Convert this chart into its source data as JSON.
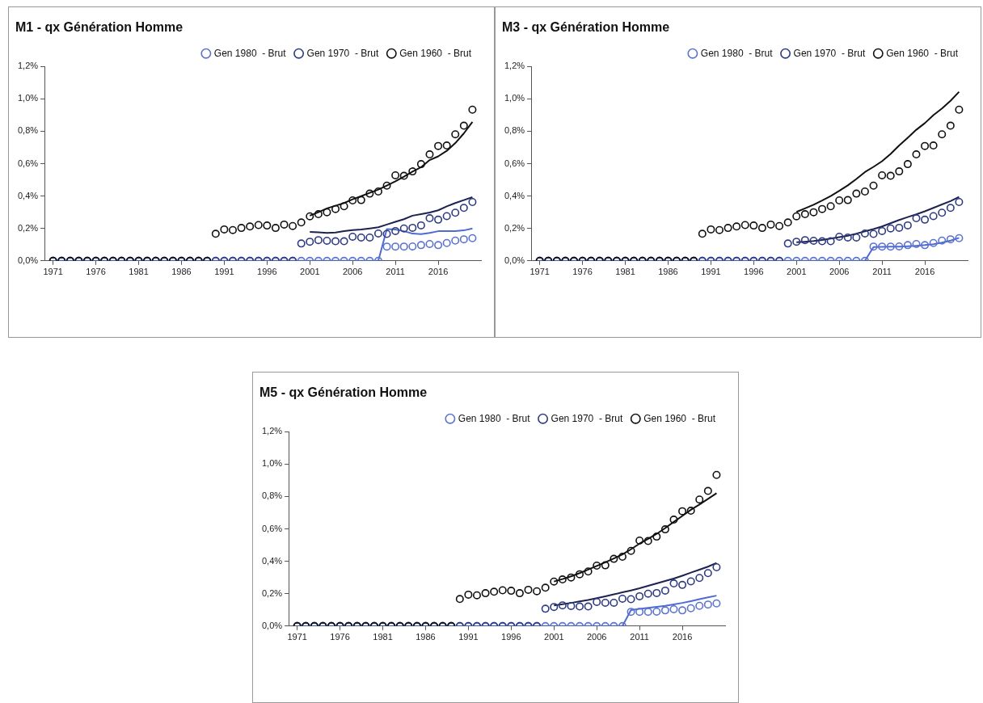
{
  "chart_data": [
    {
      "type": "scatter",
      "title": "M1 - qx Génération Homme",
      "marker": "circle",
      "legend": "top right",
      "grid": false,
      "x": [
        1971,
        1972,
        1973,
        1974,
        1975,
        1976,
        1977,
        1978,
        1979,
        1980,
        1981,
        1982,
        1983,
        1984,
        1985,
        1986,
        1987,
        1988,
        1989,
        1990,
        1991,
        1992,
        1993,
        1994,
        1995,
        1996,
        1997,
        1998,
        1999,
        2000,
        2001,
        2002,
        2003,
        2004,
        2005,
        2006,
        2007,
        2008,
        2009,
        2010,
        2011,
        2012,
        2013,
        2014,
        2015,
        2016,
        2017,
        2018,
        2019,
        2020
      ],
      "xlim": [
        1970,
        2021
      ],
      "xticks": [
        1971,
        1976,
        1981,
        1986,
        1991,
        1996,
        2001,
        2006,
        2011,
        2016
      ],
      "ylim": [
        0,
        1.2
      ],
      "yticks": [
        {
          "value": 0,
          "label": "0,0%"
        },
        {
          "value": 0.2,
          "label": "0,2%"
        },
        {
          "value": 0.4,
          "label": "0,4%"
        },
        {
          "value": 0.6,
          "label": "0,6%"
        },
        {
          "value": 0.8,
          "label": "0,8%"
        },
        {
          "value": 1,
          "label": "1,0%"
        },
        {
          "value": 1.2,
          "label": "1,2%"
        }
      ],
      "series": [
        {
          "type": "line",
          "marker": "none",
          "color": "#4f6bd0",
          "values": [
            0,
            0,
            0,
            0,
            0,
            0,
            0,
            0,
            0,
            0,
            0,
            0,
            0,
            0,
            0,
            0,
            0,
            0,
            0,
            0,
            0,
            0,
            0,
            0,
            0,
            0,
            0,
            0,
            0,
            0,
            0,
            0,
            0,
            0,
            0,
            0,
            0,
            0,
            0,
            0.196,
            0.193,
            0.183,
            0.168,
            0.165,
            0.172,
            0.183,
            0.183,
            0.184,
            0.188,
            0.2
          ]
        },
        {
          "type": "line",
          "marker": "none",
          "color": "#1c2350",
          "values": [
            null,
            null,
            null,
            null,
            null,
            null,
            null,
            null,
            null,
            null,
            null,
            null,
            null,
            null,
            null,
            null,
            null,
            null,
            null,
            null,
            null,
            null,
            null,
            null,
            null,
            null,
            null,
            null,
            null,
            null,
            0.179,
            0.176,
            0.172,
            0.175,
            0.183,
            0.19,
            0.194,
            0.2,
            0.207,
            0.224,
            0.241,
            0.257,
            0.279,
            0.288,
            0.298,
            0.312,
            0.336,
            0.357,
            0.375,
            0.393
          ]
        },
        {
          "type": "line",
          "marker": "none",
          "color": "#111111",
          "values": [
            null,
            null,
            null,
            null,
            null,
            null,
            null,
            null,
            null,
            null,
            null,
            null,
            null,
            null,
            null,
            null,
            null,
            null,
            null,
            null,
            null,
            null,
            null,
            null,
            null,
            null,
            null,
            null,
            null,
            null,
            0.279,
            0.3,
            0.324,
            0.34,
            0.357,
            0.38,
            0.399,
            0.42,
            0.44,
            0.465,
            0.491,
            0.52,
            0.551,
            0.578,
            0.622,
            0.645,
            0.679,
            0.727,
            0.787,
            0.857
          ]
        },
        {
          "name": "Gen 1980  - Brut",
          "color": "#5b73cf",
          "values": [
            0,
            0,
            0,
            0,
            0,
            0,
            0,
            0,
            0,
            0,
            0,
            0,
            0,
            0,
            0,
            0,
            0,
            0,
            0,
            0,
            0,
            0,
            0,
            0,
            0,
            0,
            0,
            0,
            0,
            0,
            0,
            0,
            0,
            0,
            0,
            0,
            0,
            0,
            0,
            0.088,
            0.088,
            0.088,
            0.089,
            0.097,
            0.104,
            0.097,
            0.11,
            0.125,
            0.133,
            0.14
          ]
        },
        {
          "name": "Gen 1970  - Brut",
          "color": "#2f3b80",
          "values": [
            0,
            0,
            0,
            0,
            0,
            0,
            0,
            0,
            0,
            0,
            0,
            0,
            0,
            0,
            0,
            0,
            0,
            0,
            0,
            0,
            0,
            0,
            0,
            0,
            0,
            0,
            0,
            0,
            0,
            0.107,
            0.118,
            0.128,
            0.124,
            0.121,
            0.121,
            0.149,
            0.144,
            0.144,
            0.169,
            0.166,
            0.184,
            0.2,
            0.204,
            0.219,
            0.263,
            0.254,
            0.276,
            0.297,
            0.327,
            0.363
          ]
        },
        {
          "name": "Gen 1960  - Brut",
          "color": "#111111",
          "values": [
            0,
            0,
            0,
            0,
            0,
            0,
            0,
            0,
            0,
            0,
            0,
            0,
            0,
            0,
            0,
            0,
            0,
            0,
            0,
            0.167,
            0.194,
            0.19,
            0.203,
            0.212,
            0.221,
            0.218,
            0.203,
            0.224,
            0.215,
            0.237,
            0.275,
            0.288,
            0.3,
            0.32,
            0.337,
            0.373,
            0.375,
            0.415,
            0.428,
            0.464,
            0.528,
            0.525,
            0.552,
            0.597,
            0.657,
            0.709,
            0.712,
            0.781,
            0.834,
            0.933
          ]
        }
      ]
    },
    {
      "type": "scatter",
      "title": "M3 - qx Génération Homme",
      "marker": "circle",
      "legend": "top right",
      "grid": false,
      "x": [
        1971,
        1972,
        1973,
        1974,
        1975,
        1976,
        1977,
        1978,
        1979,
        1980,
        1981,
        1982,
        1983,
        1984,
        1985,
        1986,
        1987,
        1988,
        1989,
        1990,
        1991,
        1992,
        1993,
        1994,
        1995,
        1996,
        1997,
        1998,
        1999,
        2000,
        2001,
        2002,
        2003,
        2004,
        2005,
        2006,
        2007,
        2008,
        2009,
        2010,
        2011,
        2012,
        2013,
        2014,
        2015,
        2016,
        2017,
        2018,
        2019,
        2020
      ],
      "xlim": [
        1970,
        2021
      ],
      "xticks": [
        1971,
        1976,
        1981,
        1986,
        1991,
        1996,
        2001,
        2006,
        2011,
        2016
      ],
      "ylim": [
        0,
        1.2
      ],
      "yticks": [
        {
          "value": 0,
          "label": "0,0%"
        },
        {
          "value": 0.2,
          "label": "0,2%"
        },
        {
          "value": 0.4,
          "label": "0,4%"
        },
        {
          "value": 0.6,
          "label": "0,6%"
        },
        {
          "value": 0.8,
          "label": "0,8%"
        },
        {
          "value": 1,
          "label": "1,0%"
        },
        {
          "value": 1.2,
          "label": "1,2%"
        }
      ],
      "series": [
        {
          "type": "line",
          "marker": "none",
          "color": "#4f6bd0",
          "values": [
            0,
            0,
            0,
            0,
            0,
            0,
            0,
            0,
            0,
            0,
            0,
            0,
            0,
            0,
            0,
            0,
            0,
            0,
            0,
            0,
            0,
            0,
            0,
            0,
            0,
            0,
            0,
            0,
            0,
            0,
            0,
            0,
            0,
            0,
            0,
            0,
            0,
            0,
            0,
            0.085,
            0.086,
            0.087,
            0.088,
            0.09,
            0.093,
            0.097,
            0.103,
            0.112,
            0.125,
            0.142
          ]
        },
        {
          "type": "line",
          "marker": "none",
          "color": "#1c2350",
          "values": [
            null,
            null,
            null,
            null,
            null,
            null,
            null,
            null,
            null,
            null,
            null,
            null,
            null,
            null,
            null,
            null,
            null,
            null,
            null,
            null,
            null,
            null,
            null,
            null,
            null,
            null,
            null,
            null,
            null,
            null,
            0.115,
            0.118,
            0.122,
            0.129,
            0.137,
            0.146,
            0.155,
            0.168,
            0.182,
            0.196,
            0.212,
            0.232,
            0.252,
            0.27,
            0.287,
            0.306,
            0.327,
            0.348,
            0.369,
            0.395
          ]
        },
        {
          "type": "line",
          "marker": "none",
          "color": "#111111",
          "values": [
            null,
            null,
            null,
            null,
            null,
            null,
            null,
            null,
            null,
            null,
            null,
            null,
            null,
            null,
            null,
            null,
            null,
            null,
            null,
            null,
            null,
            null,
            null,
            null,
            null,
            null,
            null,
            null,
            null,
            null,
            0.302,
            0.324,
            0.346,
            0.372,
            0.4,
            0.432,
            0.466,
            0.505,
            0.548,
            0.58,
            0.615,
            0.66,
            0.712,
            0.76,
            0.809,
            0.85,
            0.899,
            0.94,
            0.988,
            1.043
          ]
        },
        {
          "name": "Gen 1980  - Brut",
          "color": "#5b73cf",
          "values": [
            0,
            0,
            0,
            0,
            0,
            0,
            0,
            0,
            0,
            0,
            0,
            0,
            0,
            0,
            0,
            0,
            0,
            0,
            0,
            0,
            0,
            0,
            0,
            0,
            0,
            0,
            0,
            0,
            0,
            0,
            0,
            0,
            0,
            0,
            0,
            0,
            0,
            0,
            0,
            0.088,
            0.088,
            0.088,
            0.089,
            0.097,
            0.104,
            0.097,
            0.11,
            0.125,
            0.133,
            0.14
          ]
        },
        {
          "name": "Gen 1970  - Brut",
          "color": "#2f3b80",
          "values": [
            0,
            0,
            0,
            0,
            0,
            0,
            0,
            0,
            0,
            0,
            0,
            0,
            0,
            0,
            0,
            0,
            0,
            0,
            0,
            0,
            0,
            0,
            0,
            0,
            0,
            0,
            0,
            0,
            0,
            0.107,
            0.118,
            0.128,
            0.124,
            0.121,
            0.121,
            0.149,
            0.144,
            0.144,
            0.169,
            0.166,
            0.184,
            0.2,
            0.204,
            0.219,
            0.263,
            0.254,
            0.276,
            0.297,
            0.327,
            0.363
          ]
        },
        {
          "name": "Gen 1960  - Brut",
          "color": "#111111",
          "values": [
            0,
            0,
            0,
            0,
            0,
            0,
            0,
            0,
            0,
            0,
            0,
            0,
            0,
            0,
            0,
            0,
            0,
            0,
            0,
            0.167,
            0.194,
            0.19,
            0.203,
            0.212,
            0.221,
            0.218,
            0.203,
            0.224,
            0.215,
            0.237,
            0.275,
            0.288,
            0.3,
            0.32,
            0.337,
            0.373,
            0.375,
            0.415,
            0.428,
            0.464,
            0.528,
            0.525,
            0.552,
            0.597,
            0.657,
            0.709,
            0.712,
            0.781,
            0.834,
            0.933
          ]
        }
      ]
    },
    {
      "type": "scatter",
      "title": "M5 - qx Génération Homme",
      "marker": "circle",
      "legend": "top right",
      "grid": false,
      "x": [
        1971,
        1972,
        1973,
        1974,
        1975,
        1976,
        1977,
        1978,
        1979,
        1980,
        1981,
        1982,
        1983,
        1984,
        1985,
        1986,
        1987,
        1988,
        1989,
        1990,
        1991,
        1992,
        1993,
        1994,
        1995,
        1996,
        1997,
        1998,
        1999,
        2000,
        2001,
        2002,
        2003,
        2004,
        2005,
        2006,
        2007,
        2008,
        2009,
        2010,
        2011,
        2012,
        2013,
        2014,
        2015,
        2016,
        2017,
        2018,
        2019,
        2020
      ],
      "xlim": [
        1970,
        2021
      ],
      "xticks": [
        1971,
        1976,
        1981,
        1986,
        1991,
        1996,
        2001,
        2006,
        2011,
        2016
      ],
      "ylim": [
        0,
        1.2
      ],
      "yticks": [
        {
          "value": 0,
          "label": "0,0%"
        },
        {
          "value": 0.2,
          "label": "0,2%"
        },
        {
          "value": 0.4,
          "label": "0,4%"
        },
        {
          "value": 0.6,
          "label": "0,6%"
        },
        {
          "value": 0.8,
          "label": "0,8%"
        },
        {
          "value": 1,
          "label": "1,0%"
        },
        {
          "value": 1.2,
          "label": "1,2%"
        }
      ],
      "series": [
        {
          "type": "line",
          "marker": "none",
          "color": "#4f6bd0",
          "values": [
            0,
            0,
            0,
            0,
            0,
            0,
            0,
            0,
            0,
            0,
            0,
            0,
            0,
            0,
            0,
            0,
            0,
            0,
            0,
            0,
            0,
            0,
            0,
            0,
            0,
            0,
            0,
            0,
            0,
            0,
            0,
            0,
            0,
            0,
            0,
            0,
            0,
            0,
            0,
            0.099,
            0.106,
            0.113,
            0.119,
            0.125,
            0.134,
            0.143,
            0.154,
            0.166,
            0.177,
            0.188
          ]
        },
        {
          "type": "line",
          "marker": "none",
          "color": "#1c2350",
          "values": [
            null,
            null,
            null,
            null,
            null,
            null,
            null,
            null,
            null,
            null,
            null,
            null,
            null,
            null,
            null,
            null,
            null,
            null,
            null,
            null,
            null,
            null,
            null,
            null,
            null,
            null,
            null,
            null,
            null,
            null,
            0.128,
            0.135,
            0.143,
            0.152,
            0.161,
            0.172,
            0.184,
            0.196,
            0.208,
            0.22,
            0.233,
            0.248,
            0.263,
            0.278,
            0.293,
            0.311,
            0.33,
            0.348,
            0.367,
            0.39
          ]
        },
        {
          "type": "line",
          "marker": "none",
          "color": "#111111",
          "values": [
            null,
            null,
            null,
            null,
            null,
            null,
            null,
            null,
            null,
            null,
            null,
            null,
            null,
            null,
            null,
            null,
            null,
            null,
            null,
            null,
            null,
            null,
            null,
            null,
            null,
            null,
            null,
            null,
            null,
            null,
            0.275,
            0.29,
            0.307,
            0.327,
            0.349,
            0.371,
            0.394,
            0.417,
            0.442,
            0.474,
            0.509,
            0.538,
            0.569,
            0.605,
            0.643,
            0.68,
            0.718,
            0.75,
            0.785,
            0.82
          ]
        },
        {
          "name": "Gen 1980  - Brut",
          "color": "#5b73cf",
          "values": [
            0,
            0,
            0,
            0,
            0,
            0,
            0,
            0,
            0,
            0,
            0,
            0,
            0,
            0,
            0,
            0,
            0,
            0,
            0,
            0,
            0,
            0,
            0,
            0,
            0,
            0,
            0,
            0,
            0,
            0,
            0,
            0,
            0,
            0,
            0,
            0,
            0,
            0,
            0,
            0.088,
            0.088,
            0.088,
            0.089,
            0.097,
            0.104,
            0.097,
            0.11,
            0.125,
            0.133,
            0.14
          ]
        },
        {
          "name": "Gen 1970  - Brut",
          "color": "#2f3b80",
          "values": [
            0,
            0,
            0,
            0,
            0,
            0,
            0,
            0,
            0,
            0,
            0,
            0,
            0,
            0,
            0,
            0,
            0,
            0,
            0,
            0,
            0,
            0,
            0,
            0,
            0,
            0,
            0,
            0,
            0,
            0.107,
            0.118,
            0.128,
            0.124,
            0.121,
            0.121,
            0.149,
            0.144,
            0.144,
            0.169,
            0.166,
            0.184,
            0.2,
            0.204,
            0.219,
            0.263,
            0.254,
            0.276,
            0.297,
            0.327,
            0.363
          ]
        },
        {
          "name": "Gen 1960  - Brut",
          "color": "#111111",
          "values": [
            0,
            0,
            0,
            0,
            0,
            0,
            0,
            0,
            0,
            0,
            0,
            0,
            0,
            0,
            0,
            0,
            0,
            0,
            0,
            0.167,
            0.194,
            0.19,
            0.203,
            0.212,
            0.221,
            0.218,
            0.203,
            0.224,
            0.215,
            0.237,
            0.275,
            0.288,
            0.3,
            0.32,
            0.337,
            0.373,
            0.375,
            0.415,
            0.428,
            0.464,
            0.528,
            0.525,
            0.552,
            0.597,
            0.657,
            0.709,
            0.712,
            0.781,
            0.834,
            0.933
          ]
        }
      ]
    }
  ]
}
